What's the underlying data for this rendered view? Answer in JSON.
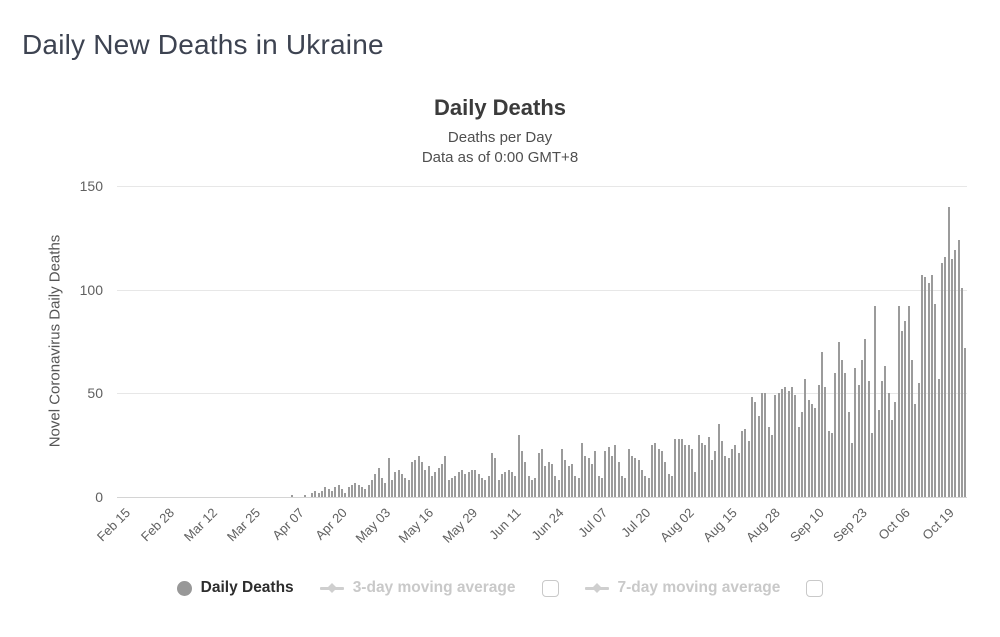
{
  "page": {
    "title": "Daily New Deaths in Ukraine"
  },
  "chart": {
    "title": "Daily Deaths",
    "subtitle_line1": "Deaths per Day",
    "subtitle_line2": "Data as of 0:00 GMT+8",
    "y_axis_title": "Novel Coronavirus Daily Deaths",
    "legend": {
      "daily_deaths_label": "Daily Deaths",
      "ma3_label": "3-day moving average",
      "ma3_checkbox_checked": false,
      "ma7_label": "7-day moving average",
      "ma7_checkbox_checked": false
    }
  },
  "chart_data": {
    "type": "bar",
    "title": "Daily Deaths",
    "subtitle": [
      "Deaths per Day",
      "Data as of 0:00 GMT+8"
    ],
    "xlabel": "",
    "ylabel": "Novel Coronavirus Daily Deaths",
    "ylim": [
      0,
      150
    ],
    "yticks": [
      0,
      50,
      100,
      150
    ],
    "grid": true,
    "legend_position": "bottom",
    "legend": [
      "Daily Deaths",
      "3-day moving average",
      "7-day moving average"
    ],
    "bar_color": "#9b9b9b",
    "start_date": "Feb 15",
    "end_date": "Oct 26",
    "x_tick_interval": 13,
    "x_tick_labels": [
      "Feb 15",
      "Feb 28",
      "Mar 12",
      "Mar 25",
      "Apr 07",
      "Apr 20",
      "May 03",
      "May 16",
      "May 29",
      "Jun 11",
      "Jun 24",
      "Jul 07",
      "Jul 20",
      "Aug 02",
      "Aug 15",
      "Aug 28",
      "Sep 10",
      "Sep 23",
      "Oct 06",
      "Oct 19"
    ],
    "values": [
      0,
      0,
      0,
      0,
      0,
      0,
      0,
      0,
      0,
      0,
      0,
      0,
      0,
      0,
      0,
      0,
      0,
      0,
      0,
      0,
      0,
      0,
      0,
      0,
      0,
      0,
      0,
      0,
      0,
      0,
      0,
      0,
      0,
      0,
      0,
      0,
      0,
      0,
      0,
      0,
      0,
      0,
      0,
      0,
      0,
      0,
      0,
      0,
      0,
      0,
      0,
      0,
      1,
      0,
      0,
      0,
      1,
      0,
      2,
      3,
      2,
      3,
      5,
      4,
      3,
      5,
      6,
      4,
      2,
      5,
      6,
      7,
      6,
      5,
      4,
      6,
      8,
      11,
      14,
      9,
      7,
      19,
      8,
      12,
      13,
      11,
      9,
      8,
      17,
      18,
      20,
      17,
      13,
      15,
      10,
      12,
      14,
      16,
      20,
      8,
      9,
      10,
      12,
      13,
      11,
      12,
      13,
      13,
      11,
      9,
      8,
      10,
      21,
      19,
      8,
      11,
      12,
      13,
      12,
      10,
      30,
      22,
      17,
      10,
      8,
      9,
      21,
      23,
      15,
      17,
      16,
      10,
      8,
      23,
      18,
      15,
      16,
      10,
      9,
      26,
      20,
      19,
      16,
      22,
      10,
      9,
      22,
      24,
      20,
      25,
      17,
      10,
      9,
      23,
      20,
      19,
      18,
      13,
      10,
      9,
      25,
      26,
      23,
      22,
      17,
      11,
      10,
      28,
      28,
      28,
      25,
      25,
      23,
      12,
      30,
      26,
      25,
      29,
      18,
      22,
      35,
      27,
      20,
      19,
      23,
      25,
      21,
      32,
      33,
      27,
      48,
      46,
      39,
      50,
      50,
      34,
      30,
      49,
      50,
      52,
      53,
      51,
      53,
      49,
      34,
      41,
      57,
      47,
      45,
      43,
      54,
      70,
      53,
      32,
      31,
      60,
      75,
      66,
      60,
      41,
      26,
      62,
      54,
      66,
      76,
      56,
      31,
      92,
      42,
      56,
      63,
      50,
      37,
      46,
      92,
      80,
      85,
      92,
      66,
      45,
      55,
      107,
      106,
      103,
      107,
      93,
      57,
      113,
      116,
      140,
      115,
      119,
      124,
      101,
      72
    ]
  }
}
